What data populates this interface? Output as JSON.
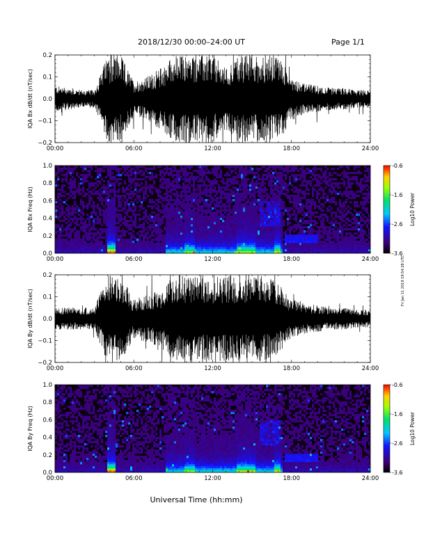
{
  "header": {
    "title": "2018/12/30   00:00–24:00 UT",
    "page": "Page 1/1"
  },
  "side_note": "Fri Jan 11 2019 19:54:28 UTC",
  "xlabel": "Universal Time (hh:mm)",
  "chart_data": [
    {
      "type": "line",
      "ylabel": "IQA Bx dB/dt (nT/sec)",
      "x_ticks": [
        "00:00",
        "06:00",
        "12:00",
        "18:00",
        "24:00"
      ],
      "y_ticks": [
        "0.2",
        "0.1",
        "0.0",
        "−0.1",
        "−0.2"
      ],
      "xlim": [
        0,
        24
      ],
      "ylim": [
        -0.2,
        0.2
      ],
      "series_envelope": {
        "x_hours": [
          0,
          1,
          2,
          3,
          4,
          5,
          6,
          7,
          8,
          9,
          10,
          11,
          12,
          13,
          14,
          15,
          16,
          17,
          18,
          19,
          20,
          21,
          22,
          23,
          24
        ],
        "amplitude": [
          0.06,
          0.05,
          0.04,
          0.04,
          0.2,
          0.2,
          0.08,
          0.1,
          0.14,
          0.2,
          0.2,
          0.2,
          0.2,
          0.14,
          0.2,
          0.2,
          0.2,
          0.2,
          0.1,
          0.07,
          0.06,
          0.05,
          0.05,
          0.04,
          0.04
        ]
      }
    },
    {
      "type": "heatmap",
      "ylabel": "IQA Bx Freq (Hz)",
      "x_ticks": [
        "00:00",
        "06:00",
        "12:00",
        "18:00",
        "24:00"
      ],
      "y_ticks": [
        "1.0",
        "0.8",
        "0.6",
        "0.4",
        "0.2",
        "0.0"
      ],
      "xlim": [
        0,
        24
      ],
      "ylim": [
        0,
        1.0
      ],
      "colorbar": {
        "label": "Log10 Power",
        "ticks": [
          "-0.6",
          "-1.6",
          "-2.6",
          "-3.6"
        ],
        "range": [
          -3.6,
          -0.6
        ]
      }
    },
    {
      "type": "line",
      "ylabel": "IQA By dB/dt (nT/sec)",
      "x_ticks": [
        "00:00",
        "06:00",
        "12:00",
        "18:00",
        "24:00"
      ],
      "y_ticks": [
        "0.2",
        "0.1",
        "0.0",
        "−0.1",
        "−0.2"
      ],
      "xlim": [
        0,
        24
      ],
      "ylim": [
        -0.2,
        0.2
      ],
      "series_envelope": {
        "x_hours": [
          0,
          1,
          2,
          3,
          4,
          5,
          6,
          7,
          8,
          9,
          10,
          11,
          12,
          13,
          14,
          15,
          16,
          17,
          18,
          19,
          20,
          21,
          22,
          23,
          24
        ],
        "amplitude": [
          0.05,
          0.05,
          0.05,
          0.05,
          0.2,
          0.2,
          0.09,
          0.11,
          0.13,
          0.2,
          0.2,
          0.2,
          0.2,
          0.2,
          0.2,
          0.2,
          0.2,
          0.16,
          0.09,
          0.07,
          0.06,
          0.05,
          0.05,
          0.04,
          0.04
        ]
      }
    },
    {
      "type": "heatmap",
      "ylabel": "IQA By Freq (Hz)",
      "x_ticks": [
        "00:00",
        "06:00",
        "12:00",
        "18:00",
        "24:00"
      ],
      "y_ticks": [
        "1.0",
        "0.8",
        "0.6",
        "0.4",
        "0.2",
        "0.0"
      ],
      "xlim": [
        0,
        24
      ],
      "ylim": [
        0,
        1.0
      ],
      "colorbar": {
        "label": "Log10 Power",
        "ticks": [
          "-0.6",
          "-1.6",
          "-2.6",
          "-3.6"
        ],
        "range": [
          -3.6,
          -0.6
        ]
      }
    }
  ]
}
